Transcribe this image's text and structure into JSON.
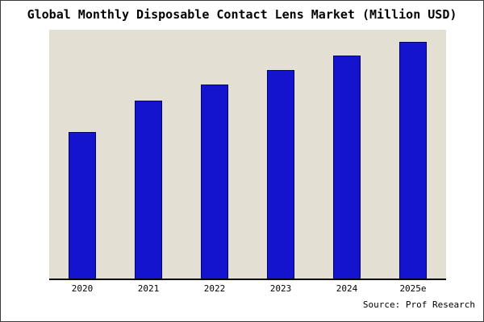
{
  "chart_data": {
    "type": "bar",
    "title": "Global Monthly Disposable Contact Lens Market (Million USD)",
    "categories": [
      "2020",
      "2021",
      "2022",
      "2023",
      "2024",
      "2025e"
    ],
    "values": [
      62,
      75,
      82,
      88,
      94,
      100
    ],
    "xlabel": "",
    "ylabel": "",
    "ylim": [
      0,
      105
    ],
    "grid": false,
    "legend": false,
    "y_axis_ticks": []
  },
  "source": "Source: Prof Research",
  "colors": {
    "bar_fill": "#1414cf",
    "bar_edge": "#000070",
    "plot_bg": "#e3dfd2",
    "axis_line": "#000000",
    "frame_border": "#3a3a3a"
  }
}
